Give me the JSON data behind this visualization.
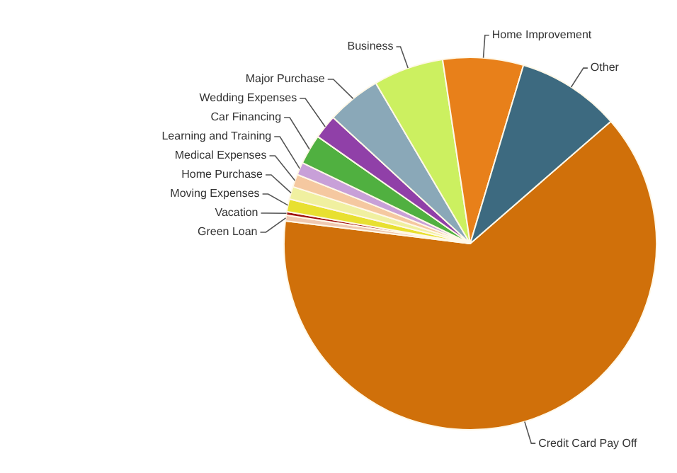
{
  "chart_data": {
    "type": "pie",
    "categories": [
      "Credit Card Pay Off",
      "Green Loan",
      "Vacation",
      "Moving Expenses",
      "Home Purchase",
      "Medical Expenses",
      "Learning and Training",
      "Car Financing",
      "Wedding Expenses",
      "Major Purchase",
      "Business",
      "Home Improvement",
      "Other"
    ],
    "values": [
      63.4,
      0.5,
      0.3,
      1.1,
      1.1,
      1.1,
      1.1,
      2.6,
      2.1,
      4.7,
      6.1,
      7.0,
      9.0
    ],
    "colors": [
      "#d0700a",
      "#f0c8b0",
      "#a01010",
      "#e8e030",
      "#f0f0a0",
      "#f5c8a0",
      "#c8a0d8",
      "#50b040",
      "#9040a8",
      "#8aa8b8",
      "#ccf060",
      "#e8801a",
      "#3d6a80"
    ],
    "legend": false
  }
}
